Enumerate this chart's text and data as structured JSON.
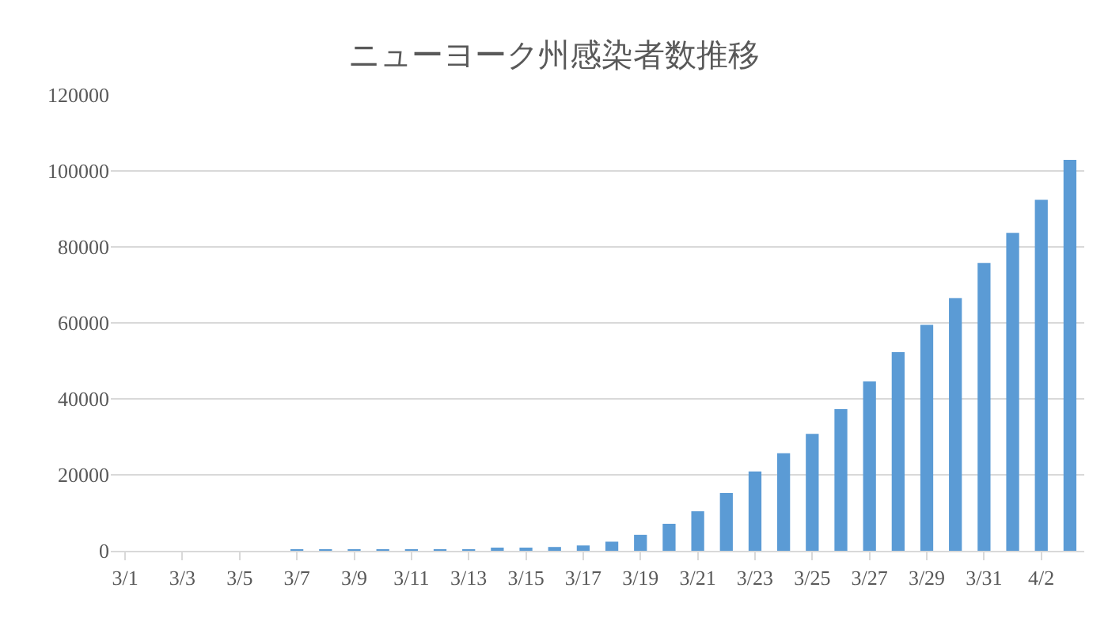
{
  "chart_data": {
    "type": "bar",
    "title": "ニューヨーク州感染者数推移",
    "categories": [
      "3/1",
      null,
      "3/3",
      null,
      "3/5",
      null,
      "3/7",
      null,
      "3/9",
      null,
      "3/11",
      null,
      "3/13",
      null,
      "3/15",
      null,
      "3/17",
      null,
      "3/19",
      null,
      "3/21",
      null,
      "3/23",
      null,
      "3/25",
      null,
      "3/27",
      null,
      "3/29",
      null,
      "3/31",
      null,
      "4/2",
      null
    ],
    "values": [
      0,
      0,
      0,
      0,
      0,
      0,
      100,
      100,
      100,
      200,
      200,
      300,
      400,
      600,
      700,
      1000,
      1400,
      2400,
      4200,
      7100,
      10400,
      15200,
      20900,
      25700,
      30800,
      37300,
      44600,
      52300,
      59500,
      66500,
      75800,
      83700,
      92400,
      102900
    ],
    "color": "#5b9bd5",
    "ylim": [
      0,
      120000
    ],
    "yticks": [
      0,
      20000,
      40000,
      60000,
      80000,
      100000,
      120000
    ],
    "grid": "y"
  }
}
